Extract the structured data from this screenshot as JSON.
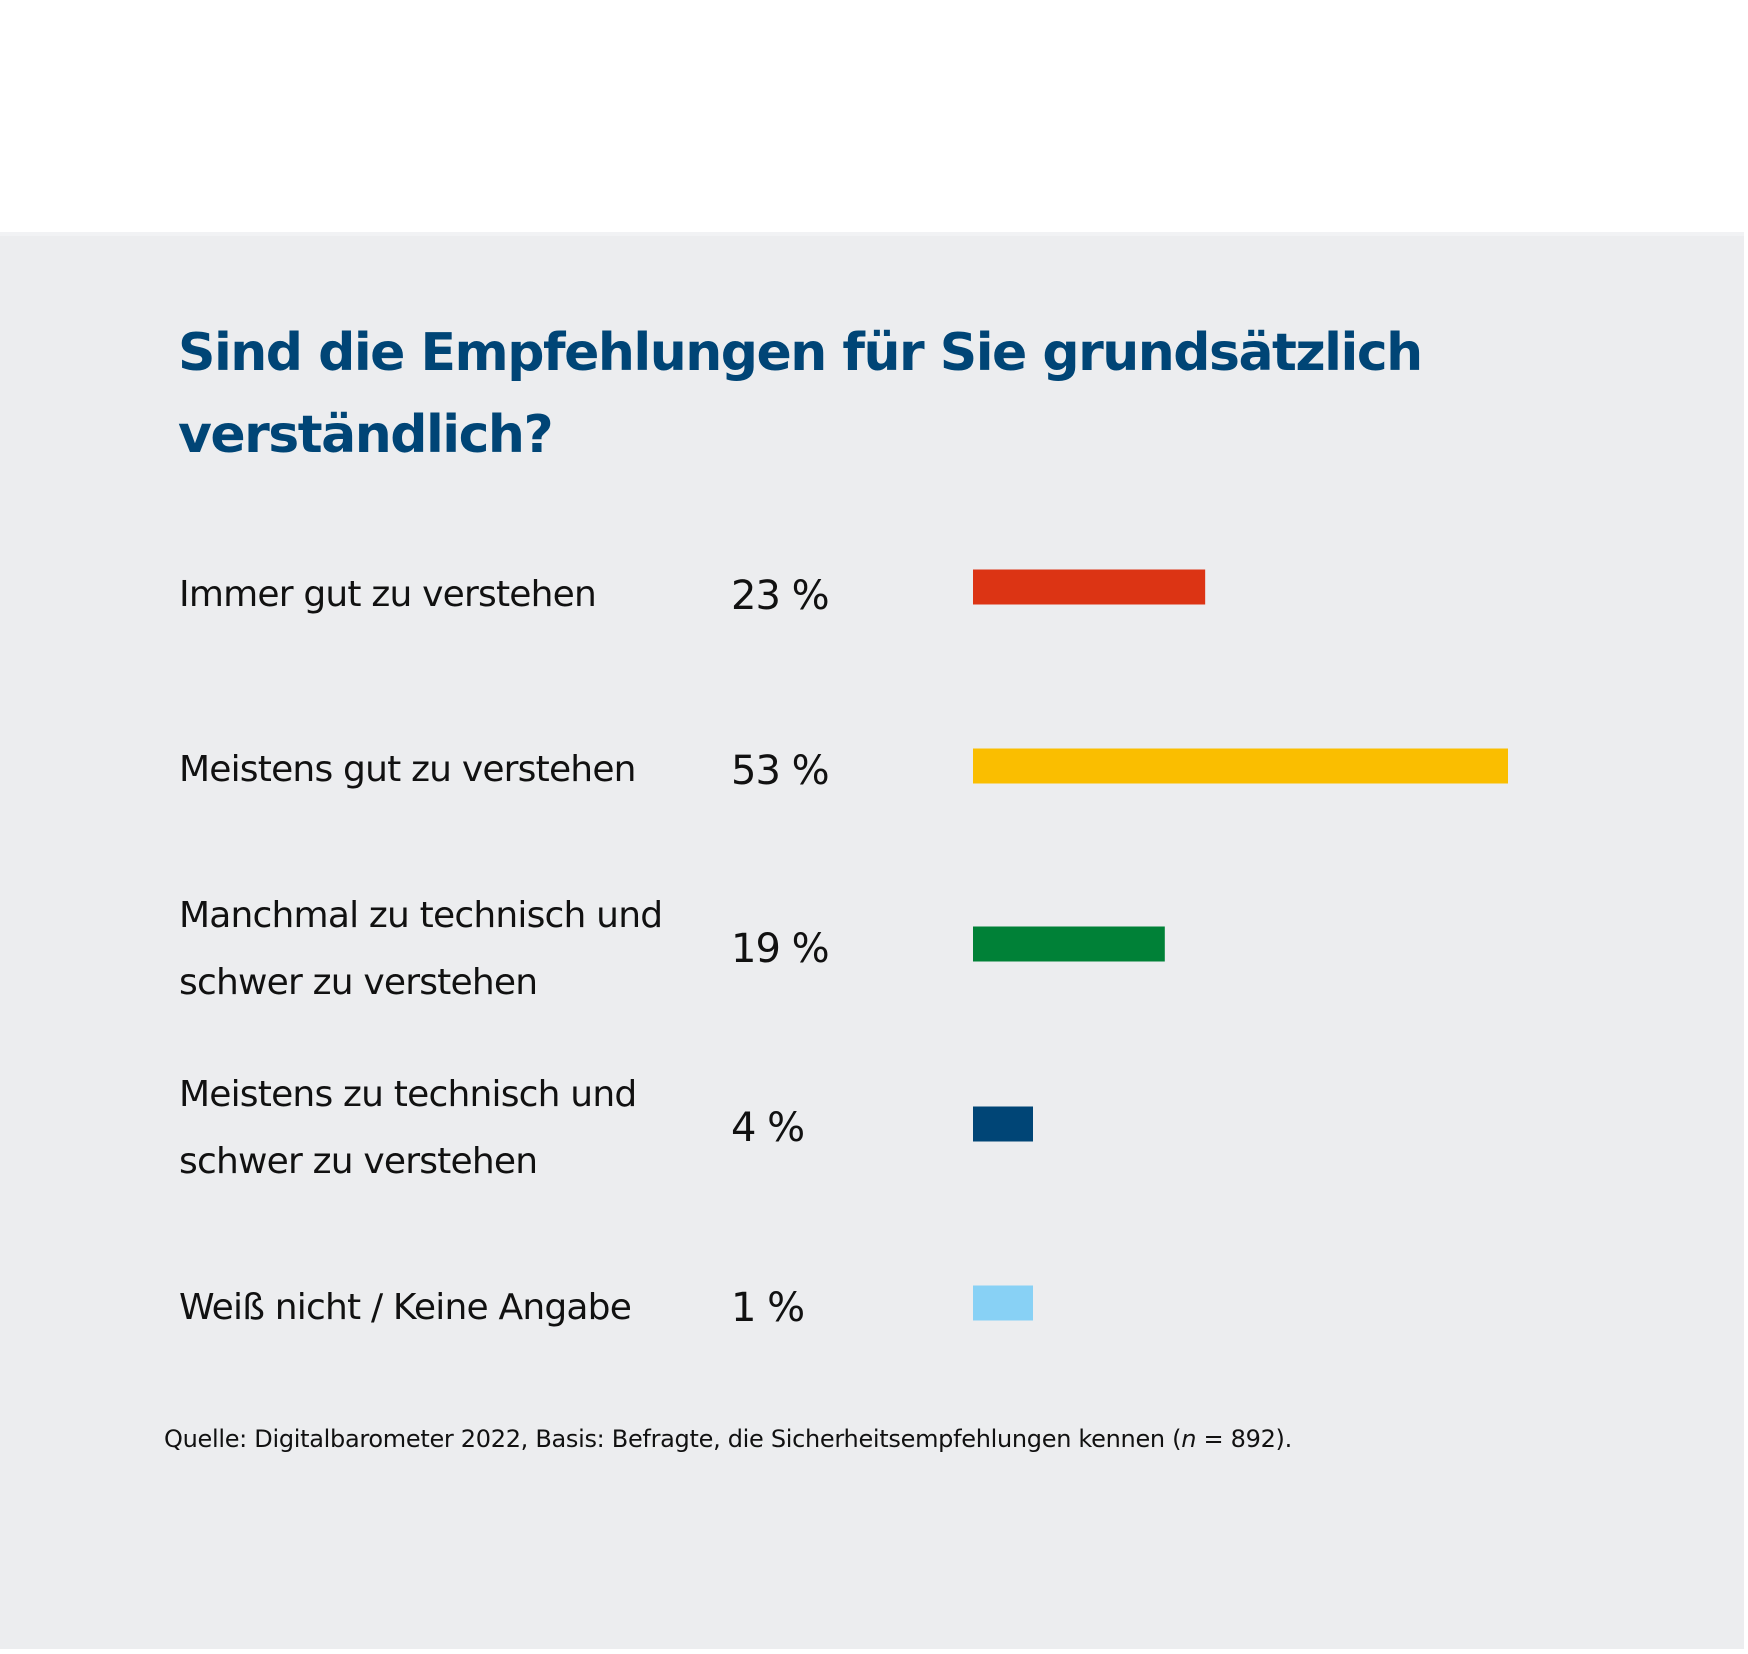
{
  "chart_data": {
    "type": "bar",
    "orientation": "horizontal",
    "title": "Sind die Empfehlungen für Sie grundsätzlich verständlich?",
    "title_lines": [
      "Sind die Empfehlungen für Sie grundsätzlich",
      "verständlich?"
    ],
    "categories": [
      "Immer gut zu verstehen",
      "Meistens gut zu verstehen",
      "Manchmal zu technisch und schwer zu verstehen",
      "Meistens zu technisch und schwer zu verstehen",
      "Weiß nicht / Keine Angabe"
    ],
    "category_lines": [
      [
        "Immer gut zu verstehen"
      ],
      [
        "Meistens gut zu verstehen"
      ],
      [
        "Manchmal zu technisch und",
        "schwer zu verstehen"
      ],
      [
        "Meistens zu technisch und",
        "schwer zu verstehen"
      ],
      [
        "Weiß nicht / Keine Angabe"
      ]
    ],
    "values": [
      23,
      53,
      19,
      4,
      1
    ],
    "value_labels": [
      "23 %",
      "53 %",
      "19 %",
      "4 %",
      "1 %"
    ],
    "unit": "%",
    "colors": [
      "#dc3414",
      "#fabe00",
      "#008137",
      "#004576",
      "#88d1f5"
    ],
    "xlabel": "",
    "ylabel": "",
    "xlim": [
      0,
      53
    ],
    "grid": false,
    "legend": "none",
    "source": {
      "prefix": "Quelle: Digitalbarometer 2022, Basis: Befragte, die Sicherheitsempfehlungen kennen (",
      "n_symbol": "n",
      "n_value": " = 892",
      "suffix": ")."
    }
  },
  "colors": {
    "title": "#004576",
    "panel_background": "#ecedef",
    "text": "#111111"
  }
}
